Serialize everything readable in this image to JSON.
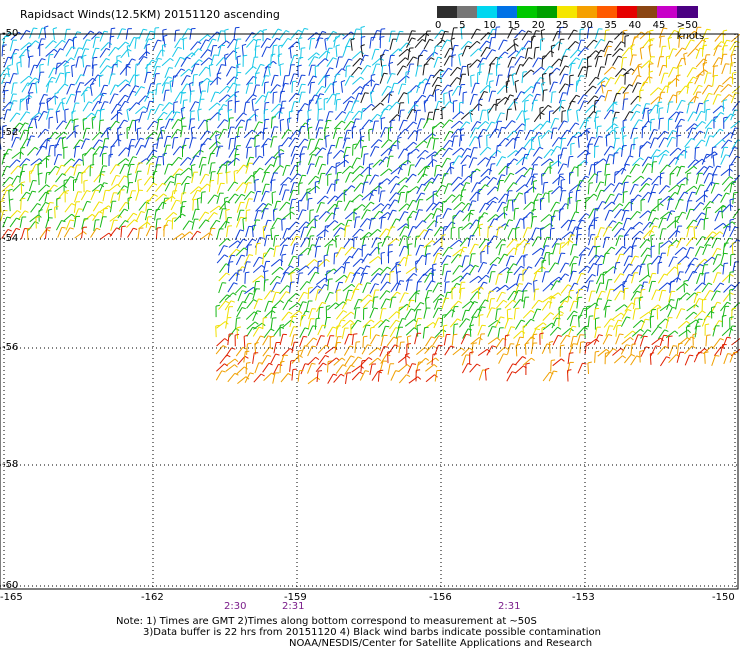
{
  "title": "Rapidsact Winds(12.5KM) 20151120 ascending",
  "legend": {
    "labels": [
      "0",
      "5",
      "10",
      "15",
      "20",
      "25",
      "30",
      "35",
      "40",
      "45",
      ">50 knots"
    ],
    "colors": [
      "#2e2e2e",
      "#767676",
      "#00d7f0",
      "#0072e6",
      "#00c800",
      "#00a000",
      "#f5e600",
      "#f5a000",
      "#ff5a00",
      "#e60000",
      "#8b4513",
      "#c800c8",
      "#4b0082"
    ]
  },
  "axes": {
    "lat_labels": [
      "-50",
      "-52",
      "-54",
      "-56",
      "-58",
      "-60"
    ],
    "lon_labels": [
      "-165",
      "-162",
      "-159",
      "-156",
      "-153",
      "-150"
    ]
  },
  "times": [
    "2:30",
    "2:31",
    "2:31"
  ],
  "notes": {
    "line1": "Note: 1) Times are GMT 2)Times along bottom correspond to measurement at ~50S",
    "line2": "3)Data buffer is 22 hrs from 20151120 4) Black wind barbs indicate possible contamination",
    "line3": "NOAA/NESDIS/Center for Satellite Applications and Research"
  }
}
